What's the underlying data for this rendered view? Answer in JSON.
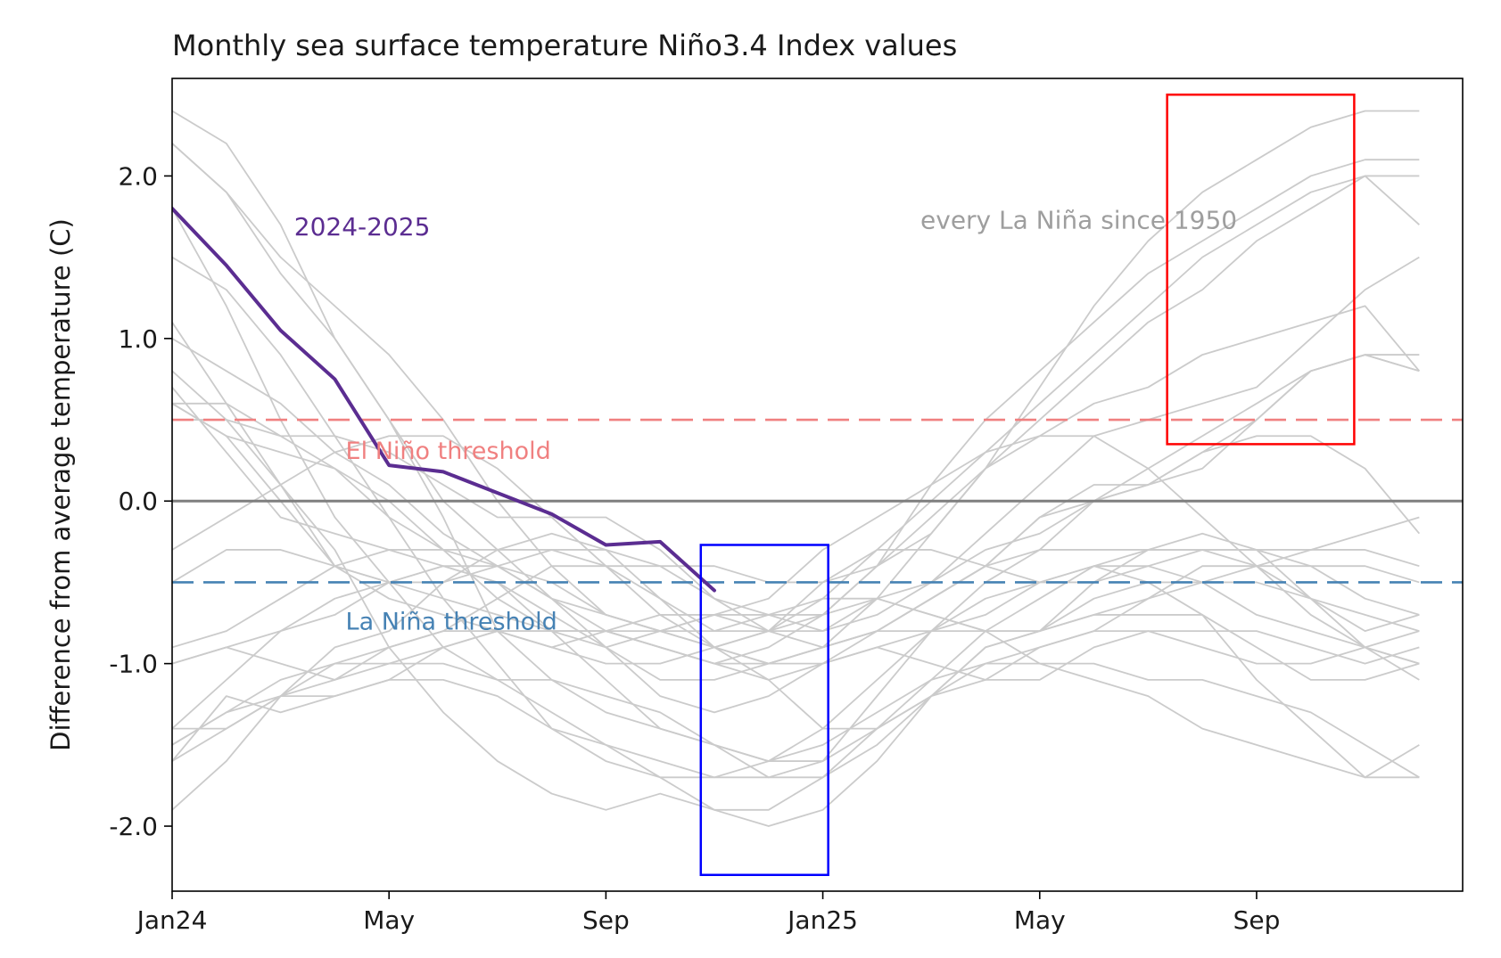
{
  "chart_data": {
    "type": "line",
    "title": "Monthly sea surface temperature Niño3.4 Index values",
    "ylabel": "Difference from average temperature (C)",
    "xlabel": "",
    "xlim": [
      0,
      23.8
    ],
    "ylim": [
      -2.4,
      2.6
    ],
    "grid": false,
    "legend_position": "none",
    "xticks": [
      0,
      4,
      8,
      12,
      16,
      20
    ],
    "xtick_labels": [
      "Jan24",
      "May",
      "Sep",
      "Jan25",
      "May",
      "Sep"
    ],
    "yticks": [
      -2.0,
      -1.0,
      0.0,
      1.0,
      2.0
    ],
    "ytick_labels": [
      "-2.0",
      "-1.0",
      "0.0",
      "1.0",
      "2.0"
    ],
    "zero_line": {
      "y": 0.0,
      "color": "#7f7f7f"
    },
    "thresholds": [
      {
        "name": "el-nino",
        "y": 0.5,
        "color": "#f08080",
        "label": "El Niño threshold",
        "label_x": 3.2,
        "label_y": 0.3
      },
      {
        "name": "la-nina",
        "y": -0.5,
        "color": "#4682b4",
        "label": "La Niña threshold",
        "label_x": 3.2,
        "label_y": -0.75
      }
    ],
    "annotations": [
      {
        "text": "2024-2025",
        "x": 2.25,
        "y": 1.68,
        "color": "#5b2d91"
      },
      {
        "text": "every La Niña since 1950",
        "x": 13.8,
        "y": 1.72,
        "color": "#9e9e9e"
      }
    ],
    "highlight_boxes": [
      {
        "name": "la-nina-winter-box",
        "x0": 9.75,
        "x1": 12.1,
        "y0": -2.3,
        "y1": -0.27,
        "color": "#0000ff"
      },
      {
        "name": "second-year-autumn-box",
        "x0": 18.35,
        "x1": 21.8,
        "y0": 0.35,
        "y1": 2.5,
        "color": "#ff0000"
      }
    ],
    "current_series": {
      "name": "2024-2025",
      "color": "#5b2d91",
      "values": [
        1.8,
        1.45,
        1.05,
        0.75,
        0.22,
        0.18,
        0.05,
        -0.08,
        -0.27,
        -0.25,
        -0.55
      ]
    },
    "historical_series": {
      "name": "every La Niña since 1950",
      "color": "#cbcbcb",
      "series": [
        {
          "name": "1950-51",
          "values": [
            -1.5,
            -1.3,
            -1.2,
            -1.2,
            -1.1,
            -0.9,
            -0.8,
            -0.9,
            -0.8,
            -0.7,
            -0.7,
            -0.8,
            -0.8,
            -0.6,
            -0.2,
            0.2,
            0.4,
            0.6,
            0.7,
            0.9,
            1.0,
            1.1,
            1.2,
            0.8
          ]
        },
        {
          "name": "1954-55",
          "values": [
            0.6,
            0.4,
            0.0,
            -0.4,
            -0.5,
            -0.6,
            -0.7,
            -0.8,
            -0.9,
            -0.8,
            -0.7,
            -0.7,
            -0.7,
            -0.6,
            -0.7,
            -0.8,
            -0.8,
            -0.7,
            -0.7,
            -0.7,
            -1.1,
            -1.4,
            -1.7,
            -1.5
          ]
        },
        {
          "name": "1964-65",
          "values": [
            1.1,
            0.6,
            0.1,
            -0.4,
            -0.6,
            -0.7,
            -0.8,
            -0.8,
            -0.8,
            -0.8,
            -0.8,
            -0.8,
            -0.6,
            -0.3,
            0.0,
            0.3,
            0.6,
            0.9,
            1.2,
            1.5,
            1.7,
            1.9,
            2.0,
            1.7
          ]
        },
        {
          "name": "1970-71",
          "values": [
            0.6,
            0.4,
            0.3,
            0.2,
            0.0,
            -0.3,
            -0.6,
            -0.8,
            -0.8,
            -0.9,
            -1.0,
            -1.1,
            -1.4,
            -1.4,
            -1.2,
            -1.0,
            -0.9,
            -0.8,
            -0.8,
            -0.8,
            -0.8,
            -0.9,
            -1.0,
            -0.9
          ]
        },
        {
          "name": "1971-72",
          "values": [
            -1.4,
            -1.4,
            -1.2,
            -1.0,
            -0.9,
            -0.8,
            -0.8,
            -0.8,
            -0.8,
            -0.9,
            -1.0,
            -0.9,
            -0.7,
            -0.4,
            0.1,
            0.5,
            0.8,
            1.1,
            1.4,
            1.6,
            1.8,
            2.0,
            2.1,
            2.1
          ]
        },
        {
          "name": "1973-74",
          "values": [
            1.8,
            1.2,
            0.5,
            -0.1,
            -0.5,
            -0.9,
            -1.1,
            -1.3,
            -1.5,
            -1.7,
            -1.9,
            -2.0,
            -1.9,
            -1.6,
            -1.2,
            -1.1,
            -0.9,
            -0.8,
            -0.6,
            -0.4,
            -0.4,
            -0.6,
            -0.8,
            -0.7
          ]
        },
        {
          "name": "1974-75",
          "values": [
            -1.9,
            -1.6,
            -1.2,
            -1.1,
            -0.9,
            -0.8,
            -0.6,
            -0.4,
            -0.4,
            -0.6,
            -0.8,
            -0.7,
            -0.6,
            -0.6,
            -0.7,
            -0.8,
            -1.0,
            -1.1,
            -1.2,
            -1.4,
            -1.5,
            -1.6,
            -1.7,
            -1.7
          ]
        },
        {
          "name": "1975-76",
          "values": [
            -1.6,
            -1.2,
            -1.3,
            -1.2,
            -1.1,
            -1.1,
            -1.2,
            -1.4,
            -1.5,
            -1.6,
            -1.7,
            -1.7,
            -1.6,
            -1.2,
            -0.8,
            -0.5,
            -0.3,
            0.0,
            0.2,
            0.4,
            0.6,
            0.8,
            0.9,
            0.8
          ]
        },
        {
          "name": "1983-84",
          "values": [
            2.2,
            1.9,
            1.5,
            1.2,
            0.9,
            0.5,
            0.0,
            -0.4,
            -0.7,
            -0.8,
            -0.9,
            -0.8,
            -0.5,
            -0.3,
            -0.3,
            -0.4,
            -0.5,
            -0.5,
            -0.3,
            -0.2,
            -0.3,
            -0.6,
            -0.9,
            -1.1
          ]
        },
        {
          "name": "1984-85",
          "values": [
            -0.5,
            -0.3,
            -0.3,
            -0.4,
            -0.5,
            -0.5,
            -0.3,
            -0.2,
            -0.3,
            -0.6,
            -0.9,
            -1.1,
            -1.0,
            -0.8,
            -0.8,
            -0.8,
            -0.8,
            -0.6,
            -0.5,
            -0.5,
            -0.4,
            -0.3,
            -0.3,
            -0.4
          ]
        },
        {
          "name": "1988-89",
          "values": [
            0.8,
            0.5,
            0.1,
            -0.3,
            -0.9,
            -1.3,
            -1.6,
            -1.8,
            -1.9,
            -1.8,
            -1.9,
            -1.9,
            -1.7,
            -1.4,
            -1.1,
            -0.8,
            -0.6,
            -0.4,
            -0.3,
            -0.3,
            -0.3,
            -0.3,
            -0.2,
            -0.1
          ]
        },
        {
          "name": "1995-96",
          "values": [
            1.0,
            0.8,
            0.6,
            0.3,
            0.1,
            -0.2,
            -0.4,
            -0.6,
            -0.8,
            -0.9,
            -1.0,
            -1.0,
            -0.9,
            -0.8,
            -0.6,
            -0.4,
            -0.3,
            -0.3,
            -0.3,
            -0.3,
            -0.4,
            -0.4,
            -0.4,
            -0.5
          ]
        },
        {
          "name": "1996-97",
          "values": [
            -0.9,
            -0.8,
            -0.6,
            -0.4,
            -0.3,
            -0.3,
            -0.3,
            -0.3,
            -0.4,
            -0.4,
            -0.4,
            -0.5,
            -0.5,
            -0.4,
            -0.2,
            0.2,
            0.7,
            1.2,
            1.6,
            1.9,
            2.1,
            2.3,
            2.4,
            2.4
          ]
        },
        {
          "name": "1998-99",
          "values": [
            2.2,
            1.9,
            1.4,
            1.0,
            0.5,
            -0.1,
            -0.8,
            -1.1,
            -1.3,
            -1.4,
            -1.5,
            -1.6,
            -1.5,
            -1.3,
            -1.1,
            -1.0,
            -1.0,
            -1.0,
            -1.1,
            -1.1,
            -1.2,
            -1.3,
            -1.5,
            -1.7
          ]
        },
        {
          "name": "1999-00",
          "values": [
            -1.5,
            -1.3,
            -1.1,
            -1.0,
            -1.0,
            -1.0,
            -1.1,
            -1.1,
            -1.2,
            -1.3,
            -1.5,
            -1.7,
            -1.7,
            -1.5,
            -1.2,
            -0.9,
            -0.8,
            -0.7,
            -0.6,
            -0.5,
            -0.5,
            -0.6,
            -0.7,
            -0.8
          ]
        },
        {
          "name": "2005-06",
          "values": [
            0.6,
            0.6,
            0.4,
            0.4,
            0.3,
            0.1,
            -0.1,
            -0.1,
            -0.1,
            -0.3,
            -0.6,
            -0.8,
            -0.9,
            -0.8,
            -0.6,
            -0.4,
            -0.1,
            0.0,
            0.1,
            0.3,
            0.5,
            0.8,
            0.9,
            0.9
          ]
        },
        {
          "name": "2007-08",
          "values": [
            0.7,
            0.3,
            -0.1,
            -0.2,
            -0.3,
            -0.4,
            -0.5,
            -0.8,
            -1.1,
            -1.4,
            -1.5,
            -1.6,
            -1.6,
            -1.4,
            -1.2,
            -0.9,
            -0.8,
            -0.5,
            -0.4,
            -0.3,
            -0.3,
            -0.4,
            -0.6,
            -0.7
          ]
        },
        {
          "name": "2008-09",
          "values": [
            -1.6,
            -1.4,
            -1.2,
            -0.9,
            -0.8,
            -0.5,
            -0.4,
            -0.3,
            -0.3,
            -0.4,
            -0.6,
            -0.7,
            -0.8,
            -0.7,
            -0.5,
            -0.2,
            0.1,
            0.4,
            0.5,
            0.6,
            0.7,
            1.0,
            1.3,
            1.5
          ]
        },
        {
          "name": "2010-11",
          "values": [
            1.5,
            1.3,
            0.9,
            0.4,
            -0.1,
            -0.6,
            -1.0,
            -1.4,
            -1.6,
            -1.7,
            -1.7,
            -1.6,
            -1.4,
            -1.1,
            -0.8,
            -0.6,
            -0.5,
            -0.4,
            -0.5,
            -0.7,
            -0.9,
            -1.1,
            -1.1,
            -1.0
          ]
        },
        {
          "name": "2011-12",
          "values": [
            -1.4,
            -1.1,
            -0.8,
            -0.6,
            -0.5,
            -0.4,
            -0.5,
            -0.7,
            -0.9,
            -1.1,
            -1.1,
            -1.0,
            -0.9,
            -0.6,
            -0.5,
            -0.3,
            -0.2,
            0.0,
            0.1,
            0.3,
            0.4,
            0.4,
            0.2,
            -0.2
          ]
        },
        {
          "name": "2016-17",
          "values": [
            2.4,
            2.2,
            1.7,
            1.0,
            0.5,
            0.0,
            -0.3,
            -0.6,
            -0.7,
            -0.8,
            -0.7,
            -0.6,
            -0.3,
            -0.1,
            0.1,
            0.3,
            0.4,
            0.4,
            0.2,
            -0.1,
            -0.4,
            -0.7,
            -0.9,
            -1.0
          ]
        },
        {
          "name": "2017-18",
          "values": [
            -0.3,
            -0.1,
            0.1,
            0.3,
            0.4,
            0.4,
            0.2,
            -0.1,
            -0.4,
            -0.7,
            -0.9,
            -1.0,
            -0.9,
            -0.8,
            -0.6,
            -0.4,
            -0.1,
            0.1,
            0.1,
            0.2,
            0.5,
            0.8,
            0.9,
            0.8
          ]
        },
        {
          "name": "2020-21",
          "values": [
            0.5,
            0.5,
            0.4,
            0.2,
            -0.1,
            -0.3,
            -0.4,
            -0.6,
            -0.9,
            -1.2,
            -1.3,
            -1.2,
            -1.0,
            -0.9,
            -0.8,
            -0.7,
            -0.5,
            -0.4,
            -0.4,
            -0.5,
            -0.7,
            -0.8,
            -0.9,
            -1.0
          ]
        },
        {
          "name": "2021-22",
          "values": [
            -1.0,
            -0.9,
            -0.8,
            -0.7,
            -0.5,
            -0.4,
            -0.4,
            -0.5,
            -0.7,
            -0.8,
            -0.9,
            -1.0,
            -1.0,
            -0.9,
            -1.0,
            -1.1,
            -1.1,
            -0.9,
            -0.8,
            -0.9,
            -1.0,
            -1.0,
            -0.9,
            -0.8
          ]
        },
        {
          "name": "2022-23",
          "values": [
            -1.0,
            -0.9,
            -1.0,
            -1.1,
            -1.0,
            -0.9,
            -0.8,
            -0.9,
            -1.0,
            -1.0,
            -0.9,
            -0.8,
            -0.7,
            -0.4,
            -0.1,
            0.2,
            0.5,
            0.8,
            1.1,
            1.3,
            1.6,
            1.8,
            2.0,
            2.0
          ]
        }
      ]
    }
  }
}
